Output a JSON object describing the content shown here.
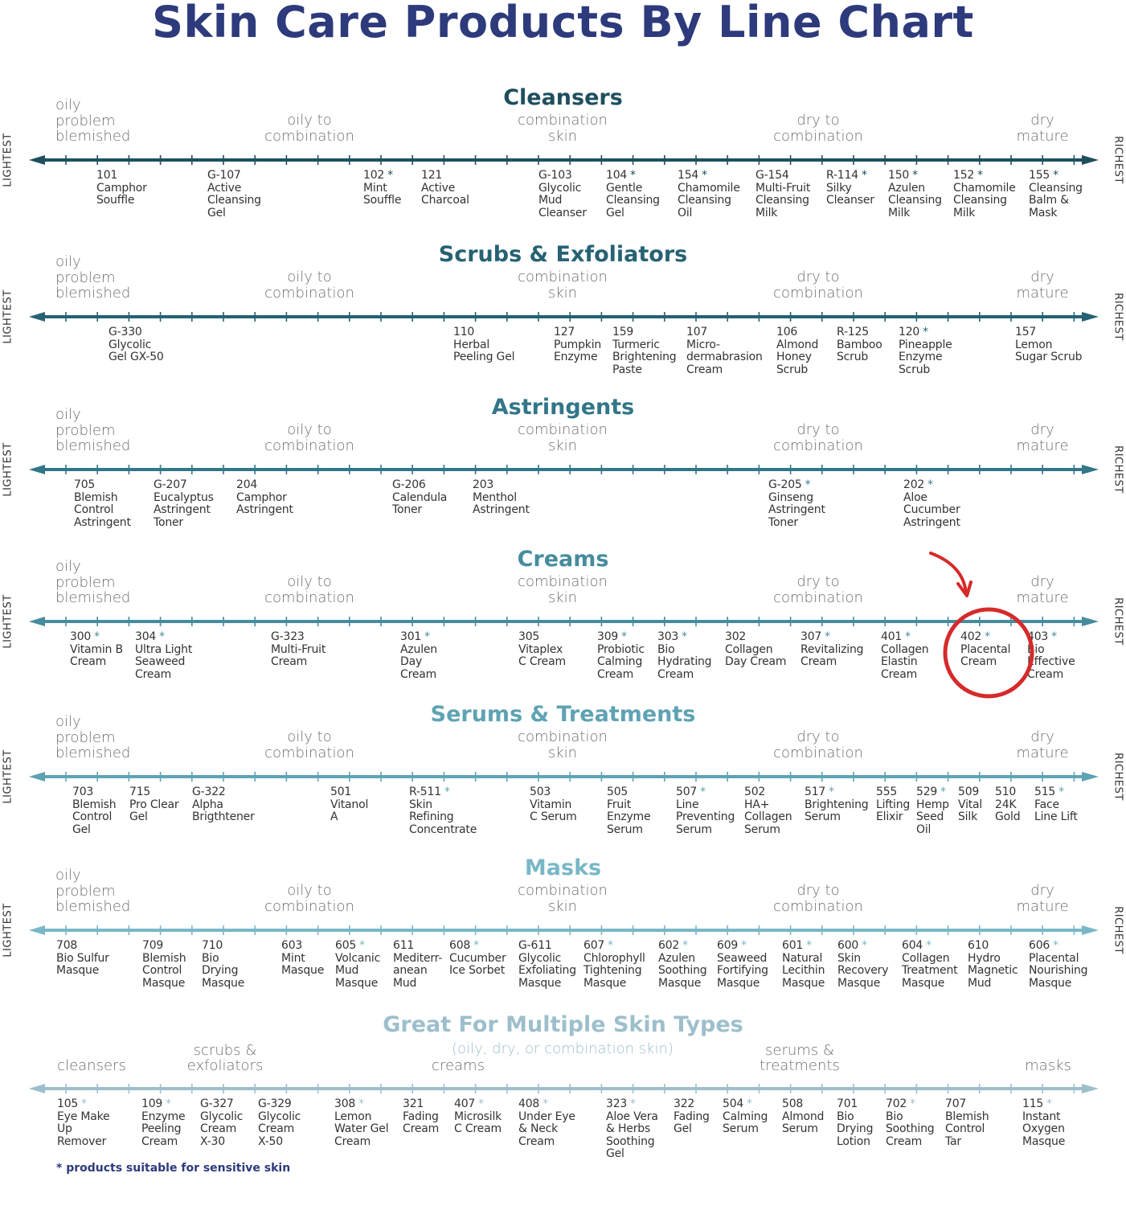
{
  "title": "Skin Care Products By Line Chart",
  "axis_labels": {
    "left": "LIGHTEST",
    "right": "RICHEST"
  },
  "skin_types": {
    "oily": [
      "oily",
      "problem",
      "blemished"
    ],
    "oily_combo": [
      "oily to",
      "combination"
    ],
    "combo": [
      "combination",
      "skin"
    ],
    "dry_combo": [
      "dry to",
      "combination"
    ],
    "dry": [
      "dry",
      "mature"
    ]
  },
  "sections": [
    {
      "title": "Cleansers",
      "color": "#1e4f5e",
      "items": [
        {
          "code": "101",
          "star": false,
          "name": [
            "Camphor",
            "Souffle"
          ]
        },
        {
          "code": "G-107",
          "star": false,
          "name": [
            "Active",
            "Cleansing",
            "Gel"
          ]
        },
        {
          "code": "102",
          "star": true,
          "name": [
            "Mint",
            "Souffle"
          ]
        },
        {
          "code": "121",
          "star": false,
          "name": [
            "Active",
            "Charcoal"
          ]
        },
        {
          "code": "G-103",
          "star": false,
          "name": [
            "Glycolic",
            "Mud",
            "Cleanser"
          ]
        },
        {
          "code": "104",
          "star": true,
          "name": [
            "Gentle",
            "Cleansing",
            "Gel"
          ]
        },
        {
          "code": "154",
          "star": true,
          "name": [
            "Chamomile",
            "Cleansing",
            "Oil"
          ]
        },
        {
          "code": "G-154",
          "star": false,
          "name": [
            "Multi-Fruit",
            "Cleansing",
            "Milk"
          ]
        },
        {
          "code": "R-114",
          "star": true,
          "name": [
            "Silky",
            "Cleanser"
          ]
        },
        {
          "code": "150",
          "star": true,
          "name": [
            "Azulen",
            "Cleansing",
            "Milk"
          ]
        },
        {
          "code": "152",
          "star": true,
          "name": [
            "Chamomile",
            "Cleansing",
            "Milk"
          ]
        },
        {
          "code": "155",
          "star": true,
          "name": [
            "Cleansing",
            "Balm &",
            "Mask"
          ]
        }
      ]
    },
    {
      "title": "Scrubs & Exfoliators",
      "color": "#266273",
      "items": [
        {
          "code": "G-330",
          "star": false,
          "name": [
            "Glycolic",
            "Gel GX-50"
          ]
        },
        {
          "code": "110",
          "star": false,
          "name": [
            "Herbal",
            "Peeling Gel"
          ]
        },
        {
          "code": "127",
          "star": false,
          "name": [
            "Pumpkin",
            "Enzyme"
          ]
        },
        {
          "code": "159",
          "star": false,
          "name": [
            "Turmeric",
            "Brightening",
            "Paste"
          ]
        },
        {
          "code": "107",
          "star": false,
          "name": [
            "Micro-",
            "dermabrasion",
            "Cream"
          ]
        },
        {
          "code": "106",
          "star": false,
          "name": [
            "Almond",
            "Honey",
            "Scrub"
          ]
        },
        {
          "code": "R-125",
          "star": false,
          "name": [
            "Bamboo",
            "Scrub"
          ]
        },
        {
          "code": "120",
          "star": true,
          "name": [
            "Pineapple",
            "Enzyme",
            "Scrub"
          ]
        },
        {
          "code": "157",
          "star": false,
          "name": [
            "Lemon",
            "Sugar Scrub"
          ]
        }
      ]
    },
    {
      "title": "Astringents",
      "color": "#327688",
      "items": [
        {
          "code": "705",
          "star": false,
          "name": [
            "Blemish",
            "Control",
            "Astringent"
          ]
        },
        {
          "code": "G-207",
          "star": false,
          "name": [
            "Eucalyptus",
            "Astringent",
            "Toner"
          ]
        },
        {
          "code": "204",
          "star": false,
          "name": [
            "Camphor",
            "Astringent"
          ]
        },
        {
          "code": "G-206",
          "star": false,
          "name": [
            "Calendula",
            "Toner"
          ]
        },
        {
          "code": "203",
          "star": false,
          "name": [
            "Menthol",
            "Astringent"
          ]
        },
        {
          "code": "G-205",
          "star": true,
          "name": [
            "Ginseng",
            "Astringent",
            "Toner"
          ]
        },
        {
          "code": "202",
          "star": true,
          "name": [
            "Aloe",
            "Cucumber",
            "Astringent"
          ]
        }
      ]
    },
    {
      "title": "Creams",
      "color": "#468c9e",
      "items": [
        {
          "code": "300",
          "star": true,
          "name": [
            "Vitamin B",
            "Cream"
          ]
        },
        {
          "code": "304",
          "star": true,
          "name": [
            "Ultra Light",
            "Seaweed",
            "Cream"
          ]
        },
        {
          "code": "G-323",
          "star": false,
          "name": [
            "Multi-Fruit",
            "Cream"
          ]
        },
        {
          "code": "301",
          "star": true,
          "name": [
            "Azulen",
            "Day",
            "Cream"
          ]
        },
        {
          "code": "305",
          "star": false,
          "name": [
            "Vitaplex",
            "C Cream"
          ]
        },
        {
          "code": "309",
          "star": true,
          "name": [
            "Probiotic",
            "Calming",
            "Cream"
          ]
        },
        {
          "code": "303",
          "star": true,
          "name": [
            "Bio",
            "Hydrating",
            "Cream"
          ]
        },
        {
          "code": "302",
          "star": false,
          "name": [
            "Collagen",
            "Day Cream"
          ]
        },
        {
          "code": "307",
          "star": true,
          "name": [
            "Revitalizing",
            "Cream"
          ]
        },
        {
          "code": "401",
          "star": true,
          "name": [
            "Collagen",
            "Elastin",
            "Cream"
          ]
        },
        {
          "code": "402",
          "star": true,
          "name": [
            "Placental",
            "Cream"
          ]
        },
        {
          "code": "403",
          "star": true,
          "name": [
            "Bio",
            "Effective",
            "Cream"
          ]
        }
      ]
    },
    {
      "title": "Serums & Treatments",
      "color": "#5ea3b4",
      "items": [
        {
          "code": "703",
          "star": false,
          "name": [
            "Blemish",
            "Control",
            "Gel"
          ]
        },
        {
          "code": "715",
          "star": false,
          "name": [
            "Pro Clear",
            "Gel"
          ]
        },
        {
          "code": "G-322",
          "star": false,
          "name": [
            "Alpha",
            "Brigthtener"
          ]
        },
        {
          "code": "501",
          "star": false,
          "name": [
            "Vitanol",
            "A"
          ]
        },
        {
          "code": "R-511",
          "star": true,
          "name": [
            "Skin",
            "Refining",
            "Concentrate"
          ]
        },
        {
          "code": "503",
          "star": false,
          "name": [
            "Vitamin",
            "C Serum"
          ]
        },
        {
          "code": "505",
          "star": false,
          "name": [
            "Fruit",
            "Enzyme",
            "Serum"
          ]
        },
        {
          "code": "507",
          "star": true,
          "name": [
            "Line",
            "Preventing",
            "Serum"
          ]
        },
        {
          "code": "502",
          "star": false,
          "name": [
            "HA+",
            "Collagen",
            "Serum"
          ]
        },
        {
          "code": "517",
          "star": true,
          "name": [
            "Brightening",
            "Serum"
          ]
        },
        {
          "code": "555",
          "star": false,
          "name": [
            "Lifting",
            "Elixir"
          ]
        },
        {
          "code": "529",
          "star": true,
          "name": [
            "Hemp",
            "Seed",
            "Oil"
          ]
        },
        {
          "code": "509",
          "star": false,
          "name": [
            "Vital",
            "Silk"
          ]
        },
        {
          "code": "510",
          "star": false,
          "name": [
            "24K",
            "Gold"
          ]
        },
        {
          "code": "515",
          "star": true,
          "name": [
            "Face",
            "Line Lift"
          ]
        }
      ]
    },
    {
      "title": "Masks",
      "color": "#79b7c7",
      "items": [
        {
          "code": "708",
          "star": false,
          "name": [
            "Bio Sulfur",
            "Masque"
          ]
        },
        {
          "code": "709",
          "star": false,
          "name": [
            "Blemish",
            "Control",
            "Masque"
          ]
        },
        {
          "code": "710",
          "star": false,
          "name": [
            "Bio",
            "Drying",
            "Masque"
          ]
        },
        {
          "code": "603",
          "star": false,
          "name": [
            "Mint",
            "Masque"
          ]
        },
        {
          "code": "605",
          "star": true,
          "name": [
            "Volcanic",
            "Mud",
            "Masque"
          ]
        },
        {
          "code": "611",
          "star": false,
          "name": [
            "Mediterr-",
            "anean",
            "Mud"
          ]
        },
        {
          "code": "608",
          "star": true,
          "name": [
            "Cucumber",
            "Ice Sorbet"
          ]
        },
        {
          "code": "G-611",
          "star": false,
          "name": [
            "Glycolic",
            "Exfoliating",
            "Masque"
          ]
        },
        {
          "code": "607",
          "star": true,
          "name": [
            "Chlorophyll",
            "Tightening",
            "Masque"
          ]
        },
        {
          "code": "602",
          "star": true,
          "name": [
            "Azulen",
            "Soothing",
            "Masque"
          ]
        },
        {
          "code": "609",
          "star": true,
          "name": [
            "Seaweed",
            "Fortifying",
            "Masque"
          ]
        },
        {
          "code": "601",
          "star": true,
          "name": [
            "Natural",
            "Lecithin",
            "Masque"
          ]
        },
        {
          "code": "600",
          "star": true,
          "name": [
            "Skin",
            "Recovery",
            "Masque"
          ]
        },
        {
          "code": "604",
          "star": true,
          "name": [
            "Collagen",
            "Treatment",
            "Masque"
          ]
        },
        {
          "code": "610",
          "star": false,
          "name": [
            "Hydro",
            "Magnetic",
            "Mud"
          ]
        },
        {
          "code": "606",
          "star": true,
          "name": [
            "Placental",
            "Nourishing",
            "Masque"
          ]
        }
      ]
    }
  ],
  "multi": {
    "title": "Great For Multiple Skin Types",
    "subtitle": "(oily, dry, or combination skin)",
    "color": "#9dbfcc",
    "categories": [
      [
        "cleansers"
      ],
      [
        "scrubs &",
        "exfoliators"
      ],
      [
        "creams"
      ],
      [
        "serums &",
        "treatments"
      ],
      [
        "masks"
      ]
    ],
    "items": [
      {
        "code": "105",
        "star": true,
        "name": [
          "Eye Make",
          "Up",
          "Remover"
        ]
      },
      {
        "code": "109",
        "star": true,
        "name": [
          "Enzyme",
          "Peeling",
          "Cream"
        ]
      },
      {
        "code": "G-327",
        "star": false,
        "name": [
          "Glycolic",
          "Cream",
          "X-30"
        ]
      },
      {
        "code": "G-329",
        "star": false,
        "name": [
          "Glycolic",
          "Cream",
          "X-50"
        ]
      },
      {
        "code": "308",
        "star": true,
        "name": [
          "Lemon",
          "Water Gel",
          "Cream"
        ]
      },
      {
        "code": "321",
        "star": false,
        "name": [
          "Fading",
          "Cream"
        ]
      },
      {
        "code": "407",
        "star": true,
        "name": [
          "Microsilk",
          "C Cream"
        ]
      },
      {
        "code": "408",
        "star": true,
        "name": [
          "Under Eye",
          "& Neck",
          "Cream"
        ]
      },
      {
        "code": "323",
        "star": true,
        "name": [
          "Aloe Vera",
          "& Herbs",
          "Soothing",
          "Gel"
        ]
      },
      {
        "code": "322",
        "star": false,
        "name": [
          "Fading",
          "Gel"
        ]
      },
      {
        "code": "504",
        "star": true,
        "name": [
          "Calming",
          "Serum"
        ]
      },
      {
        "code": "508",
        "star": false,
        "name": [
          "Almond",
          "Serum"
        ]
      },
      {
        "code": "701",
        "star": false,
        "name": [
          "Bio",
          "Drying",
          "Lotion"
        ]
      },
      {
        "code": "702",
        "star": true,
        "name": [
          "Bio",
          "Soothing",
          "Cream"
        ]
      },
      {
        "code": "707",
        "star": false,
        "name": [
          "Blemish",
          "Control",
          "Tar"
        ]
      },
      {
        "code": "115",
        "star": true,
        "name": [
          "Instant",
          "Oxygen",
          "Masque"
        ]
      }
    ]
  },
  "footnote": "* products suitable for sensitive skin",
  "annotation": {
    "highlighted_item": "402",
    "color": "#d62a2a",
    "shape": "circle-with-arrow"
  }
}
